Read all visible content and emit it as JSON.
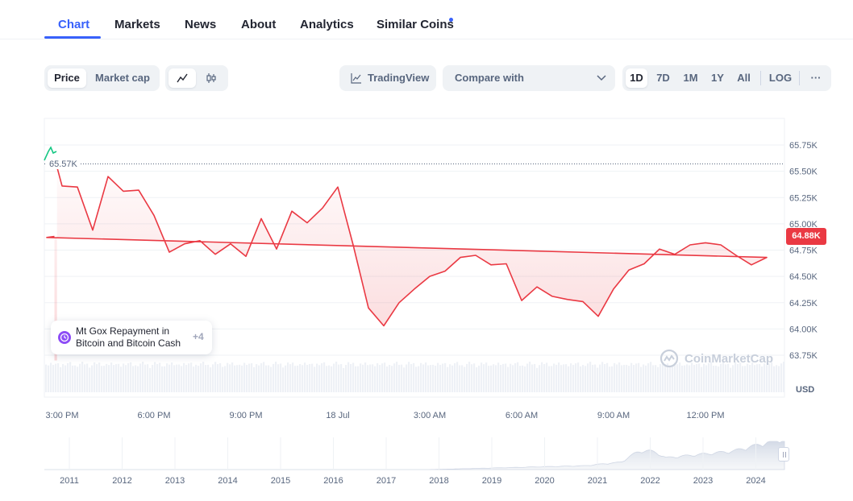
{
  "tabs": [
    {
      "label": "Chart",
      "active": true
    },
    {
      "label": "Markets"
    },
    {
      "label": "News"
    },
    {
      "label": "About"
    },
    {
      "label": "Analytics"
    },
    {
      "label": "Similar Coins",
      "has_dot": true
    }
  ],
  "toolbar": {
    "price_label": "Price",
    "market_cap_label": "Market cap",
    "line_icon": "line-chart-icon",
    "candle_icon": "candlestick-icon",
    "tradingview_label": "TradingView",
    "compare_label": "Compare with",
    "ranges": [
      "1D",
      "7D",
      "1M",
      "1Y",
      "All"
    ],
    "active_range": "1D",
    "log_label": "LOG",
    "more_label": "···"
  },
  "chart_data": {
    "type": "area",
    "series": [
      {
        "color": "#ea3943",
        "x": [
          "14:50",
          "15:00",
          "15:30",
          "16:00",
          "16:30",
          "17:00",
          "17:30",
          "18:00",
          "18:30",
          "19:00",
          "19:30",
          "20:00",
          "20:30",
          "21:00",
          "21:30",
          "22:00",
          "22:30",
          "23:00",
          "23:30",
          "00:00",
          "00:30",
          "01:00",
          "01:30",
          "02:00",
          "02:30",
          "03:00",
          "03:30",
          "04:00",
          "04:30",
          "05:00",
          "05:30",
          "06:00",
          "06:30",
          "07:00",
          "07:30",
          "08:00",
          "08:30",
          "09:00",
          "09:30",
          "10:00",
          "10:30",
          "11:00",
          "11:30",
          "12:00",
          "12:30",
          "13:00",
          "13:30",
          "14:00",
          "14:30",
          "14:45"
        ],
        "y": [
          65540,
          65360,
          65350,
          64940,
          65450,
          65310,
          65320,
          65080,
          64730,
          64810,
          64840,
          64710,
          64810,
          64690,
          65050,
          64760,
          65120,
          65010,
          65150,
          65350,
          64800,
          64200,
          64030,
          64250,
          64380,
          64500,
          64550,
          64680,
          64700,
          64610,
          64620,
          64270,
          64400,
          64310,
          64280,
          64260,
          64120,
          64380,
          64560,
          64620,
          64760,
          64710,
          64800,
          64820,
          64800,
          64700,
          64610,
          64680,
          64870,
          64880
        ]
      }
    ],
    "reference_line": {
      "value": 65570,
      "label": "65.57K"
    },
    "last_price_label": "64.88K",
    "y_ticks": [
      {
        "value": 65750,
        "label": "65.75K"
      },
      {
        "value": 65500,
        "label": "65.50K"
      },
      {
        "value": 65250,
        "label": "65.25K"
      },
      {
        "value": 65000,
        "label": "65.00K"
      },
      {
        "value": 64750,
        "label": "64.75K"
      },
      {
        "value": 64500,
        "label": "64.50K"
      },
      {
        "value": 64250,
        "label": "64.25K"
      },
      {
        "value": 64000,
        "label": "64.00K"
      },
      {
        "value": 63750,
        "label": "63.75K"
      }
    ],
    "ylim": [
      63700,
      65900
    ],
    "x_ticks": [
      {
        "t": "15:00",
        "label": "3:00 PM"
      },
      {
        "t": "18:00",
        "label": "6:00 PM"
      },
      {
        "t": "21:00",
        "label": "9:00 PM"
      },
      {
        "t": "00:00",
        "label": "18 Jul"
      },
      {
        "t": "03:00",
        "label": "3:00 AM"
      },
      {
        "t": "06:00",
        "label": "6:00 AM"
      },
      {
        "t": "09:00",
        "label": "9:00 AM"
      },
      {
        "t": "12:00",
        "label": "12:00 PM"
      }
    ],
    "currency_label": "USD",
    "watermark": "CoinMarketCap",
    "event": {
      "text": "Mt Gox Repayment in Bitcoin and Bitcoin Cash",
      "more": "+4",
      "icon": "clock-icon"
    },
    "navigator_years": [
      "2011",
      "2012",
      "2013",
      "2014",
      "2015",
      "2016",
      "2017",
      "2018",
      "2019",
      "2020",
      "2021",
      "2022",
      "2023",
      "2024"
    ],
    "colors": {
      "down": "#ea3943",
      "up": "#16c784",
      "accent": "#3861fb"
    },
    "grid": true
  }
}
